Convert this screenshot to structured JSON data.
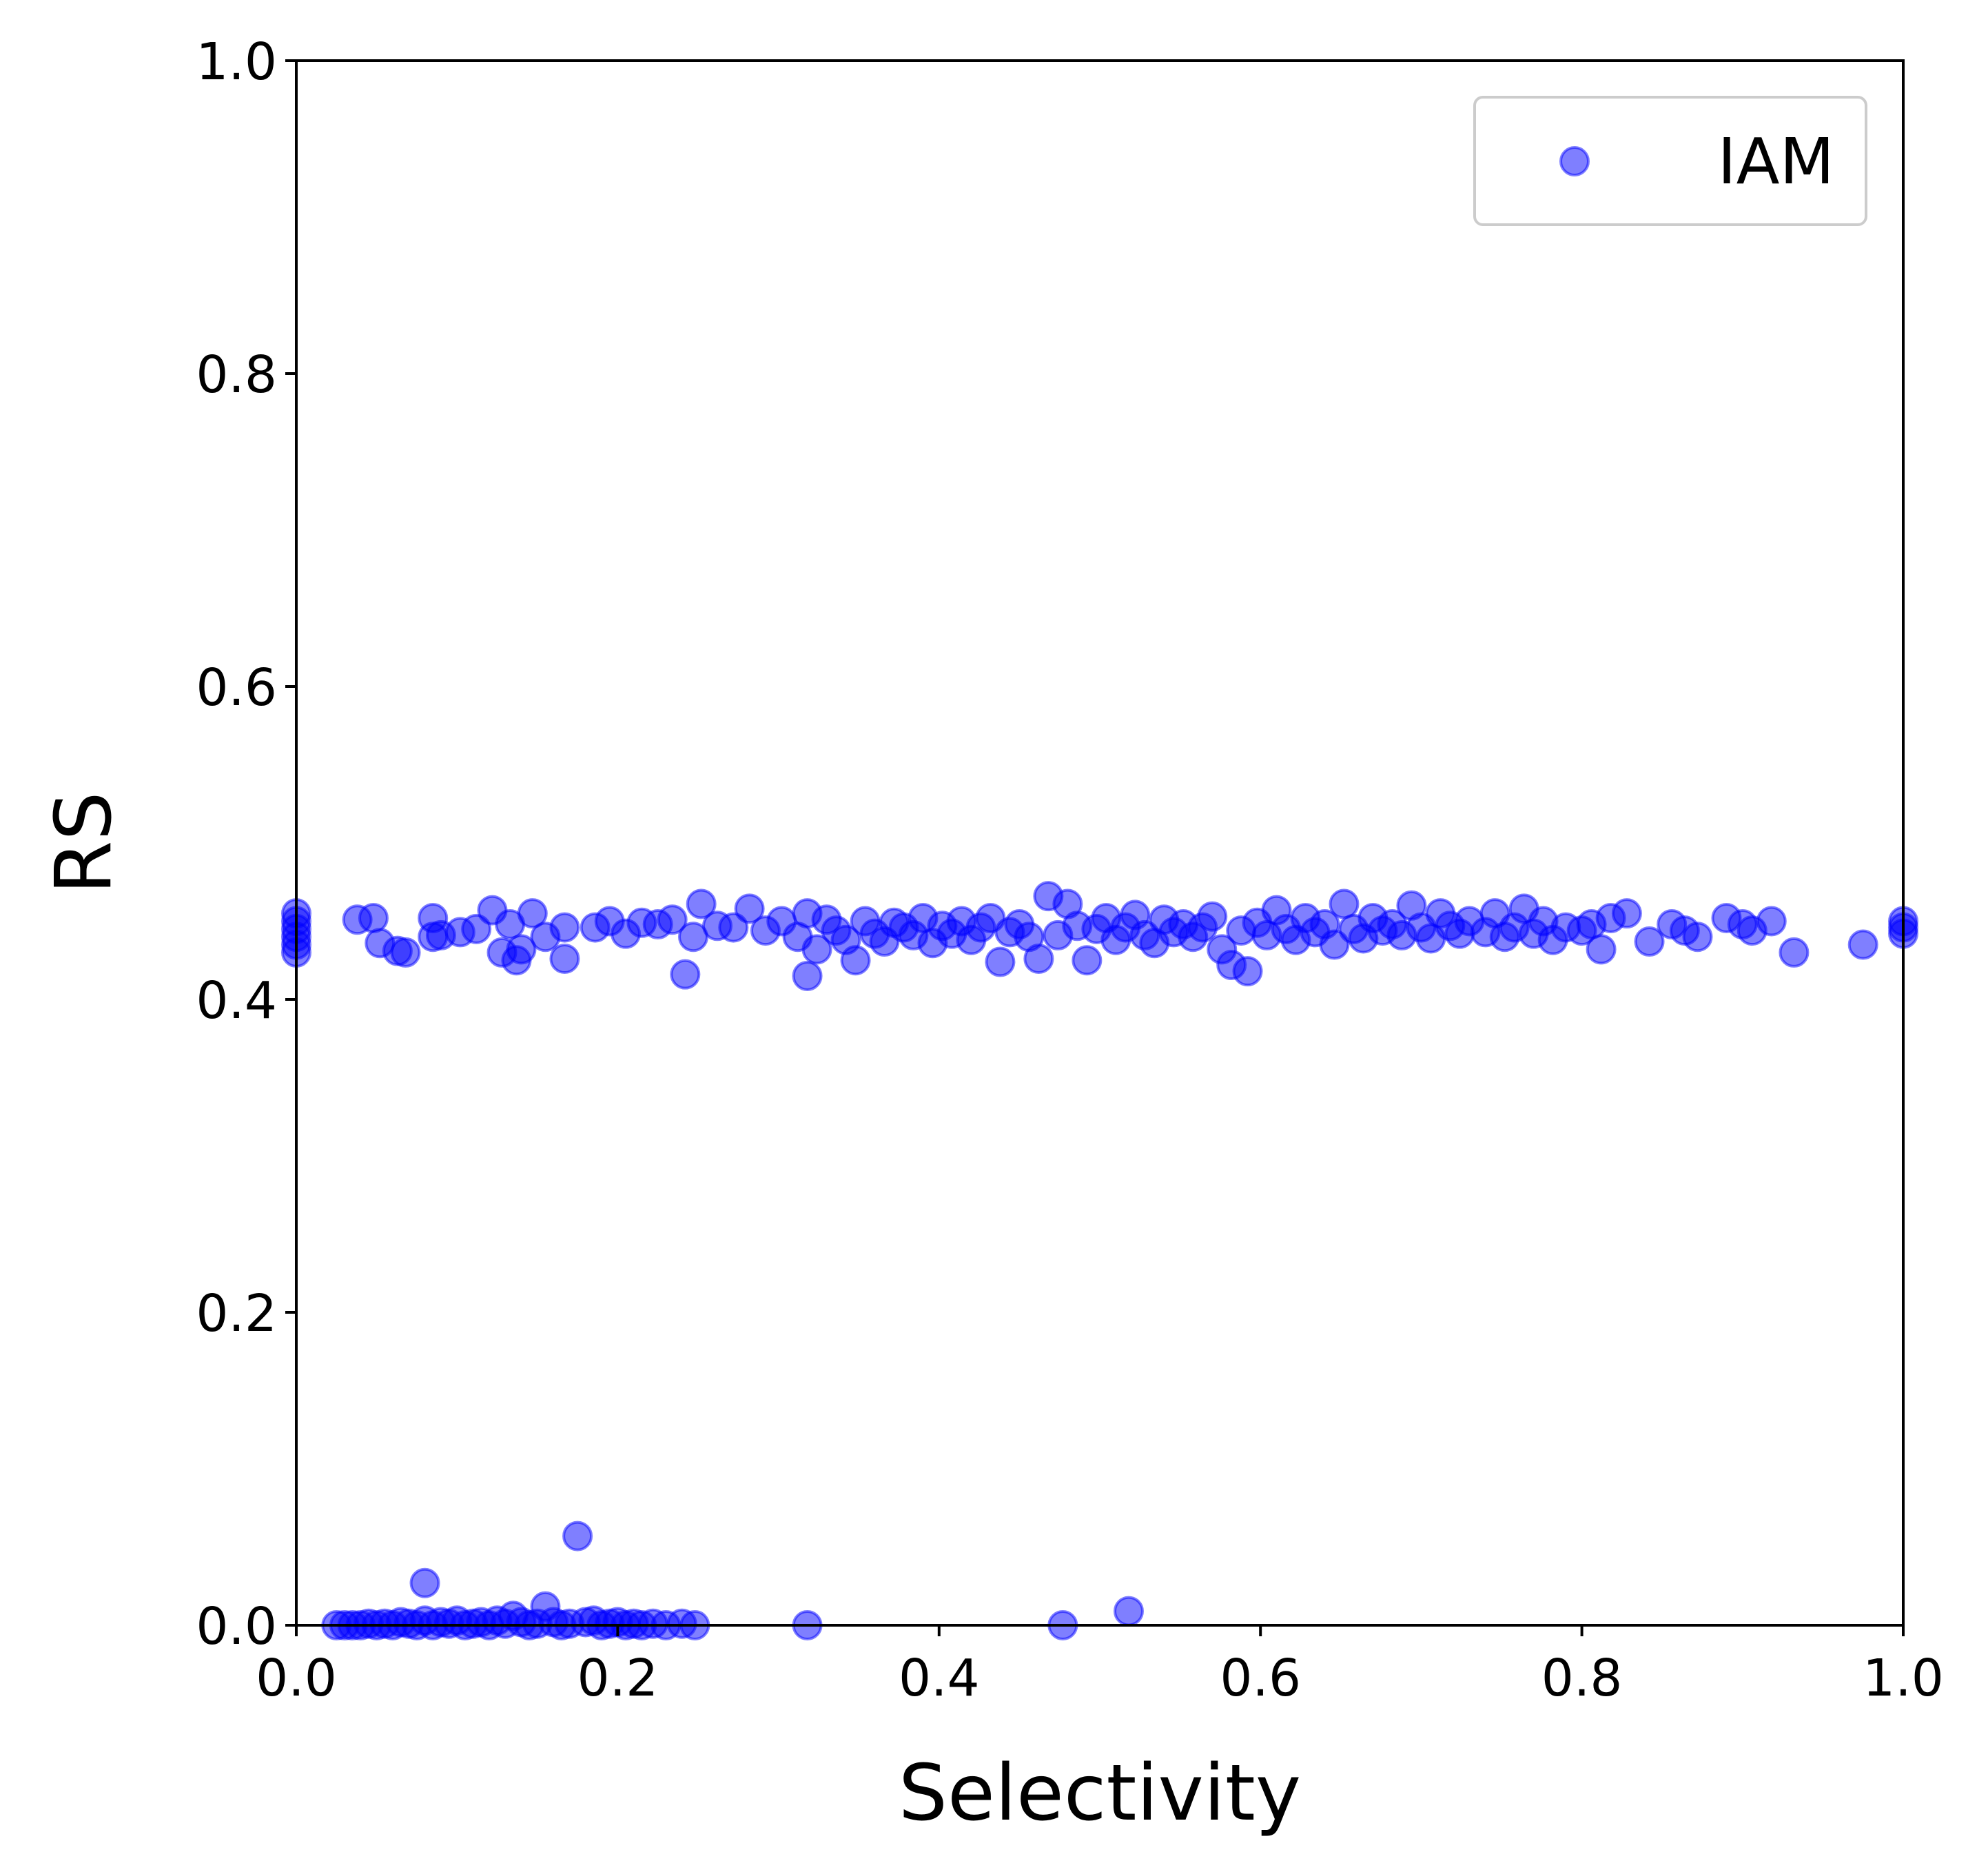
{
  "chart_data": {
    "type": "scatter",
    "xlabel": "Selectivity",
    "ylabel": "RS",
    "xlim": [
      0,
      1
    ],
    "ylim": [
      0,
      1
    ],
    "xticks": [
      "0.0",
      "0.2",
      "0.4",
      "0.6",
      "0.8",
      "1.0"
    ],
    "yticks": [
      "0.0",
      "0.2",
      "0.4",
      "0.6",
      "0.8",
      "1.0"
    ],
    "legend_position": "top-right",
    "grid": false,
    "series": [
      {
        "name": "IAM",
        "color": "#0000ff",
        "alpha": 0.5,
        "points": [
          [
            0.0,
            0.455
          ],
          [
            0.0,
            0.45
          ],
          [
            0.0,
            0.445
          ],
          [
            0.0,
            0.44
          ],
          [
            0.0,
            0.435
          ],
          [
            0.0,
            0.43
          ],
          [
            0.038,
            0.451
          ],
          [
            0.048,
            0.452
          ],
          [
            0.052,
            0.436
          ],
          [
            0.063,
            0.431
          ],
          [
            0.068,
            0.43
          ],
          [
            0.085,
            0.452
          ],
          [
            0.085,
            0.44
          ],
          [
            0.09,
            0.441
          ],
          [
            0.102,
            0.443
          ],
          [
            0.112,
            0.445
          ],
          [
            0.122,
            0.457
          ],
          [
            0.128,
            0.43
          ],
          [
            0.133,
            0.448
          ],
          [
            0.137,
            0.425
          ],
          [
            0.14,
            0.432
          ],
          [
            0.147,
            0.455
          ],
          [
            0.155,
            0.44
          ],
          [
            0.167,
            0.446
          ],
          [
            0.167,
            0.426
          ],
          [
            0.186,
            0.446
          ],
          [
            0.195,
            0.45
          ],
          [
            0.205,
            0.442
          ],
          [
            0.215,
            0.449
          ],
          [
            0.225,
            0.448
          ],
          [
            0.234,
            0.451
          ],
          [
            0.242,
            0.416
          ],
          [
            0.247,
            0.44
          ],
          [
            0.252,
            0.461
          ],
          [
            0.262,
            0.447
          ],
          [
            0.272,
            0.446
          ],
          [
            0.282,
            0.458
          ],
          [
            0.292,
            0.444
          ],
          [
            0.302,
            0.45
          ],
          [
            0.312,
            0.44
          ],
          [
            0.318,
            0.455
          ],
          [
            0.318,
            0.415
          ],
          [
            0.324,
            0.432
          ],
          [
            0.33,
            0.451
          ],
          [
            0.336,
            0.444
          ],
          [
            0.342,
            0.438
          ],
          [
            0.348,
            0.425
          ],
          [
            0.354,
            0.45
          ],
          [
            0.36,
            0.442
          ],
          [
            0.366,
            0.437
          ],
          [
            0.372,
            0.449
          ],
          [
            0.378,
            0.446
          ],
          [
            0.384,
            0.441
          ],
          [
            0.39,
            0.452
          ],
          [
            0.396,
            0.436
          ],
          [
            0.402,
            0.447
          ],
          [
            0.408,
            0.442
          ],
          [
            0.414,
            0.45
          ],
          [
            0.42,
            0.438
          ],
          [
            0.426,
            0.446
          ],
          [
            0.432,
            0.452
          ],
          [
            0.438,
            0.424
          ],
          [
            0.444,
            0.443
          ],
          [
            0.45,
            0.448
          ],
          [
            0.456,
            0.44
          ],
          [
            0.462,
            0.426
          ],
          [
            0.468,
            0.466
          ],
          [
            0.474,
            0.441
          ],
          [
            0.48,
            0.461
          ],
          [
            0.486,
            0.447
          ],
          [
            0.492,
            0.425
          ],
          [
            0.498,
            0.445
          ],
          [
            0.504,
            0.452
          ],
          [
            0.51,
            0.438
          ],
          [
            0.516,
            0.446
          ],
          [
            0.522,
            0.454
          ],
          [
            0.528,
            0.441
          ],
          [
            0.534,
            0.436
          ],
          [
            0.54,
            0.451
          ],
          [
            0.546,
            0.443
          ],
          [
            0.552,
            0.448
          ],
          [
            0.558,
            0.44
          ],
          [
            0.564,
            0.446
          ],
          [
            0.57,
            0.453
          ],
          [
            0.576,
            0.432
          ],
          [
            0.582,
            0.422
          ],
          [
            0.588,
            0.444
          ],
          [
            0.592,
            0.418
          ],
          [
            0.598,
            0.449
          ],
          [
            0.604,
            0.441
          ],
          [
            0.61,
            0.457
          ],
          [
            0.616,
            0.445
          ],
          [
            0.622,
            0.438
          ],
          [
            0.628,
            0.452
          ],
          [
            0.634,
            0.443
          ],
          [
            0.64,
            0.448
          ],
          [
            0.646,
            0.435
          ],
          [
            0.652,
            0.461
          ],
          [
            0.658,
            0.445
          ],
          [
            0.664,
            0.439
          ],
          [
            0.67,
            0.452
          ],
          [
            0.676,
            0.444
          ],
          [
            0.682,
            0.448
          ],
          [
            0.688,
            0.441
          ],
          [
            0.694,
            0.46
          ],
          [
            0.7,
            0.446
          ],
          [
            0.706,
            0.439
          ],
          [
            0.712,
            0.455
          ],
          [
            0.718,
            0.447
          ],
          [
            0.724,
            0.442
          ],
          [
            0.73,
            0.45
          ],
          [
            0.74,
            0.443
          ],
          [
            0.746,
            0.455
          ],
          [
            0.752,
            0.44
          ],
          [
            0.758,
            0.446
          ],
          [
            0.764,
            0.458
          ],
          [
            0.77,
            0.442
          ],
          [
            0.776,
            0.45
          ],
          [
            0.782,
            0.438
          ],
          [
            0.79,
            0.446
          ],
          [
            0.8,
            0.444
          ],
          [
            0.806,
            0.448
          ],
          [
            0.812,
            0.432
          ],
          [
            0.818,
            0.452
          ],
          [
            0.828,
            0.455
          ],
          [
            0.842,
            0.437
          ],
          [
            0.856,
            0.448
          ],
          [
            0.864,
            0.444
          ],
          [
            0.872,
            0.44
          ],
          [
            0.89,
            0.452
          ],
          [
            0.9,
            0.448
          ],
          [
            0.906,
            0.444
          ],
          [
            0.918,
            0.45
          ],
          [
            0.932,
            0.43
          ],
          [
            0.975,
            0.435
          ],
          [
            1.0,
            0.45
          ],
          [
            1.0,
            0.446
          ],
          [
            1.0,
            0.442
          ],
          [
            0.025,
            0.0
          ],
          [
            0.03,
            0.0
          ],
          [
            0.035,
            0.0
          ],
          [
            0.04,
            0.0
          ],
          [
            0.045,
            0.001
          ],
          [
            0.05,
            0.0
          ],
          [
            0.055,
            0.001
          ],
          [
            0.06,
            0.0
          ],
          [
            0.065,
            0.002
          ],
          [
            0.07,
            0.001
          ],
          [
            0.075,
            0.0
          ],
          [
            0.08,
            0.003
          ],
          [
            0.08,
            0.027
          ],
          [
            0.085,
            0.0
          ],
          [
            0.09,
            0.002
          ],
          [
            0.095,
            0.001
          ],
          [
            0.1,
            0.003
          ],
          [
            0.105,
            0.0
          ],
          [
            0.11,
            0.001
          ],
          [
            0.115,
            0.002
          ],
          [
            0.12,
            0.0
          ],
          [
            0.125,
            0.003
          ],
          [
            0.13,
            0.001
          ],
          [
            0.135,
            0.006
          ],
          [
            0.14,
            0.002
          ],
          [
            0.145,
            0.0
          ],
          [
            0.15,
            0.001
          ],
          [
            0.155,
            0.012
          ],
          [
            0.16,
            0.002
          ],
          [
            0.165,
            0.0
          ],
          [
            0.17,
            0.001
          ],
          [
            0.175,
            0.057
          ],
          [
            0.18,
            0.002
          ],
          [
            0.185,
            0.003
          ],
          [
            0.19,
            0.0
          ],
          [
            0.195,
            0.001
          ],
          [
            0.2,
            0.002
          ],
          [
            0.205,
            0.0
          ],
          [
            0.21,
            0.001
          ],
          [
            0.215,
            0.0
          ],
          [
            0.222,
            0.001
          ],
          [
            0.23,
            0.0
          ],
          [
            0.24,
            0.001
          ],
          [
            0.248,
            0.0
          ],
          [
            0.318,
            0.0
          ],
          [
            0.477,
            0.0
          ],
          [
            0.518,
            0.009
          ]
        ]
      }
    ]
  }
}
